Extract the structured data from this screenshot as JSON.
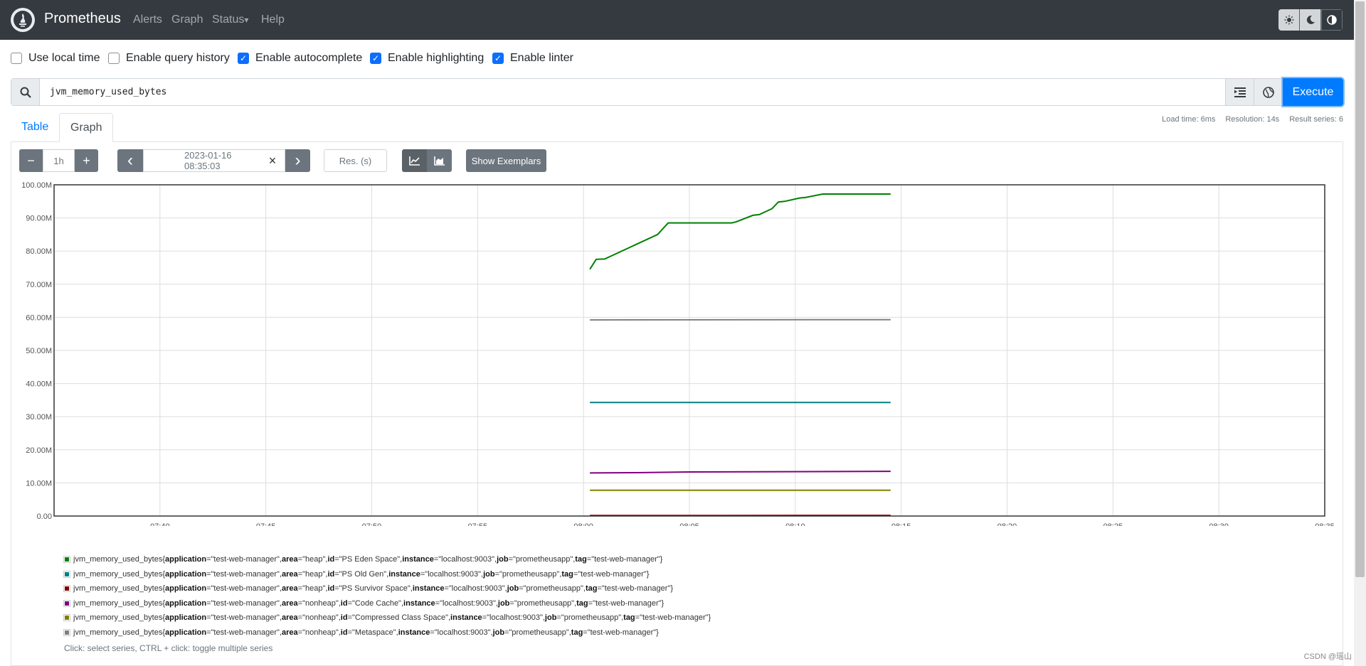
{
  "navbar": {
    "brand": "Prometheus",
    "links": [
      "Alerts",
      "Graph",
      "Status",
      "Help"
    ],
    "status_caret": "▾",
    "icons": [
      "prometheus-logo-icon",
      "sun-icon",
      "moon-icon",
      "contrast-icon"
    ]
  },
  "options": [
    {
      "label": "Use local time",
      "checked": false
    },
    {
      "label": "Enable query history",
      "checked": false
    },
    {
      "label": "Enable autocomplete",
      "checked": true
    },
    {
      "label": "Enable highlighting",
      "checked": true
    },
    {
      "label": "Enable linter",
      "checked": true
    }
  ],
  "query": {
    "expression": "jvm_memory_used_bytes",
    "execute_label": "Execute"
  },
  "tabs": [
    "Table",
    "Graph"
  ],
  "stats": {
    "load_time": "Load time: 6ms",
    "resolution": "Resolution: 14s",
    "result_series": "Result series: 6"
  },
  "controls": {
    "minus": "−",
    "range": "1h",
    "plus": "+",
    "prev": "‹",
    "end_time": "2023-01-16 08:35:03",
    "clear": "×",
    "next": "›",
    "resolution_placeholder": "Res. (s)",
    "show_exemplars": "Show Exemplars"
  },
  "chart_data": {
    "type": "line",
    "ylim": [
      0,
      100
    ],
    "yticks": [
      "0.00",
      "10.00M",
      "20.00M",
      "30.00M",
      "40.00M",
      "50.00M",
      "60.00M",
      "70.00M",
      "80.00M",
      "90.00M",
      "100.00M"
    ],
    "x_range_min": [
      35,
      95
    ],
    "xticks": [
      "07:40",
      "07:45",
      "07:50",
      "07:55",
      "08:00",
      "08:05",
      "08:10",
      "08:15",
      "08:20",
      "08:25",
      "08:30",
      "08:35"
    ],
    "grid": true,
    "series": [
      {
        "color": "#008000",
        "x": [
          60.3,
          60.6,
          61.0,
          63.5,
          64.0,
          67.0,
          67.2,
          68.0,
          68.3,
          68.9,
          69.2,
          69.5,
          70.2,
          70.5,
          71.3,
          74.5
        ],
        "y": [
          74.5,
          77.5,
          77.6,
          85.0,
          88.5,
          88.5,
          88.8,
          90.8,
          91.0,
          92.8,
          94.8,
          95.0,
          96.0,
          96.2,
          97.2,
          97.2
        ]
      },
      {
        "color": "#008080",
        "x": [
          60.3,
          74.5
        ],
        "y": [
          34.3,
          34.3
        ]
      },
      {
        "color": "#800000",
        "x": [
          60.3,
          74.5
        ],
        "y": [
          0.15,
          0.2
        ]
      },
      {
        "color": "#800080",
        "x": [
          60.3,
          62.5,
          65.0,
          74.5
        ],
        "y": [
          13.0,
          13.1,
          13.3,
          13.5
        ]
      },
      {
        "color": "#808000",
        "x": [
          60.3,
          74.5
        ],
        "y": [
          7.8,
          7.8
        ]
      },
      {
        "color": "#808080",
        "x": [
          60.3,
          74.5
        ],
        "y": [
          59.2,
          59.3
        ]
      }
    ]
  },
  "legend": {
    "items": [
      {
        "color": "#008000",
        "metric": "jvm_memory_used_bytes{",
        "area": "heap",
        "id": "PS Eden Space"
      },
      {
        "color": "#008080",
        "metric": "jvm_memory_used_bytes{",
        "area": "heap",
        "id": "PS Old Gen"
      },
      {
        "color": "#800000",
        "metric": "jvm_memory_used_bytes{",
        "area": "heap",
        "id": "PS Survivor Space"
      },
      {
        "color": "#800080",
        "metric": "jvm_memory_used_bytes{",
        "area": "nonheap",
        "id": "Code Cache"
      },
      {
        "color": "#808000",
        "metric": "jvm_memory_used_bytes{",
        "area": "nonheap",
        "id": "Compressed Class Space"
      },
      {
        "color": "#808080",
        "metric": "jvm_memory_used_bytes{",
        "area": "nonheap",
        "id": "Metaspace"
      }
    ],
    "labels": {
      "application_key": "application",
      "application_val": "=\"test-web-manager\", ",
      "area_key": "area",
      "id_key": "id",
      "instance_key": "instance",
      "instance_val": "=\"localhost:9003\", ",
      "job_key": "job",
      "job_val": "=\"prometheusapp\", ",
      "tag_key": "tag",
      "tag_val": "=\"test-web-manager\"}"
    },
    "hint": "Click: select series, CTRL + click: toggle multiple series"
  },
  "watermark": "CSDN @瑶山"
}
